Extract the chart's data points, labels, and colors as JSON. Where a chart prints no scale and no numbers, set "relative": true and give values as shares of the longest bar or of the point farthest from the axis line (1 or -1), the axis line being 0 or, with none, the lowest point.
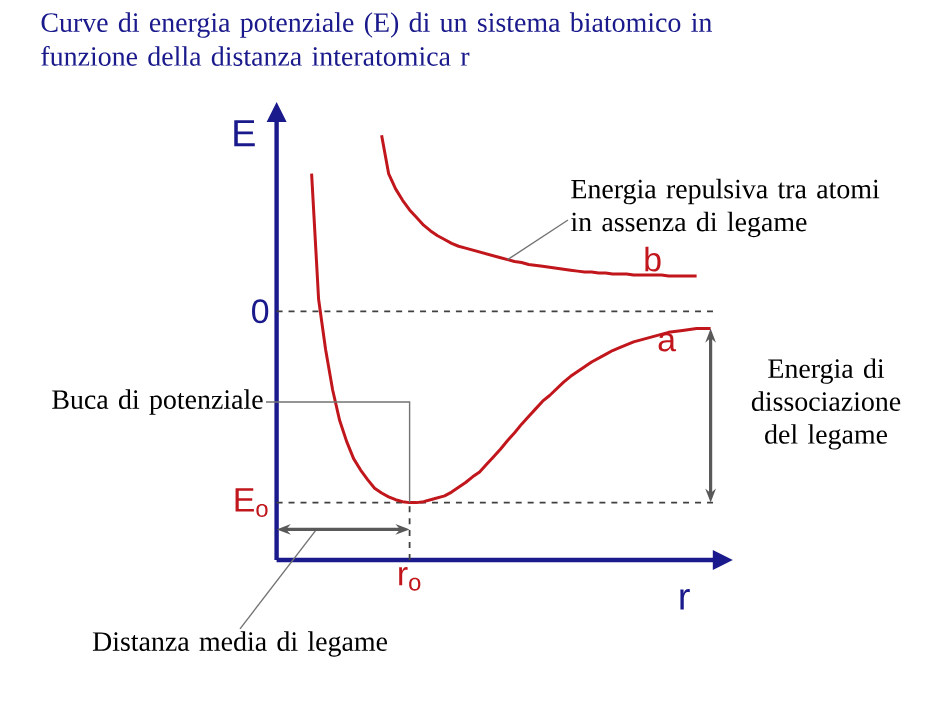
{
  "chart_data": {
    "type": "line",
    "title": "Curve di energia potenziale (E) di un sistema biatomico in funzione della distanza interatomica r",
    "xlabel": "r",
    "ylabel": "E",
    "relative": true,
    "categories": [
      null,
      null,
      null,
      null,
      null,
      null,
      null,
      null,
      null,
      null,
      null,
      null,
      null,
      null,
      null,
      null,
      null,
      null,
      null,
      null,
      null,
      null,
      null,
      null,
      null,
      null,
      null,
      null,
      null,
      null,
      null,
      null,
      null,
      null,
      null,
      null,
      null,
      null,
      null,
      null,
      null,
      null,
      null,
      null,
      null,
      null,
      null,
      null,
      null,
      null,
      null,
      null,
      null,
      null,
      null,
      null,
      null,
      null,
      null,
      null,
      null,
      null,
      null
    ],
    "series": [
      {
        "name": "a",
        "color": "#c0161c",
        "values": [
          null,
          null,
          null,
          null,
          null,
          0.72,
          0.063,
          -0.2,
          -0.41,
          -0.57,
          -0.68,
          -0.77,
          -0.83,
          -0.88,
          -0.925,
          -0.95,
          -0.97,
          -0.985,
          -0.995,
          -1.0,
          -1.0,
          -0.995,
          -0.985,
          -0.975,
          -0.965,
          -0.945,
          -0.92,
          -0.895,
          -0.865,
          -0.84,
          -0.8,
          -0.76,
          -0.72,
          -0.675,
          -0.635,
          -0.59,
          -0.55,
          -0.51,
          -0.47,
          -0.44,
          -0.405,
          -0.37,
          -0.34,
          -0.315,
          -0.29,
          -0.265,
          -0.245,
          -0.225,
          -0.205,
          -0.19,
          -0.175,
          -0.16,
          -0.15,
          -0.14,
          -0.13,
          -0.12,
          -0.11,
          -0.105,
          -0.1,
          -0.095,
          -0.09,
          -0.09,
          -0.09
        ]
      },
      {
        "name": "b",
        "color": "#c0161c",
        "values": [
          null,
          null,
          null,
          null,
          null,
          null,
          null,
          null,
          null,
          null,
          null,
          null,
          null,
          null,
          null,
          0.92,
          0.72,
          0.64,
          0.58,
          0.53,
          0.49,
          0.45,
          0.42,
          0.395,
          0.375,
          0.355,
          0.34,
          0.33,
          0.32,
          0.31,
          0.3,
          0.29,
          0.28,
          0.27,
          0.26,
          0.255,
          0.245,
          0.24,
          0.235,
          0.23,
          0.225,
          0.22,
          0.215,
          0.21,
          0.205,
          0.205,
          0.2,
          0.2,
          0.195,
          0.195,
          0.195,
          0.19,
          0.19,
          0.19,
          0.19,
          0.19,
          0.185,
          0.185,
          0.185,
          0.185,
          0.185,
          null,
          null
        ]
      }
    ],
    "ref_lines": [
      {
        "axis": "y",
        "value": 0,
        "label": "0",
        "line_style": "dashed"
      },
      {
        "axis": "y",
        "value": -1,
        "label": "E$_{o}$",
        "line_style": "dashed"
      }
    ],
    "annotations": [
      "Energia repulsiva tra atomi in assenza di legame",
      "Energia di dissociazione del legame",
      "Buca di potenziale",
      "Distanza media di legame",
      "r$_{o}$"
    ],
    "marker": "none",
    "line_style": "solid"
  }
}
